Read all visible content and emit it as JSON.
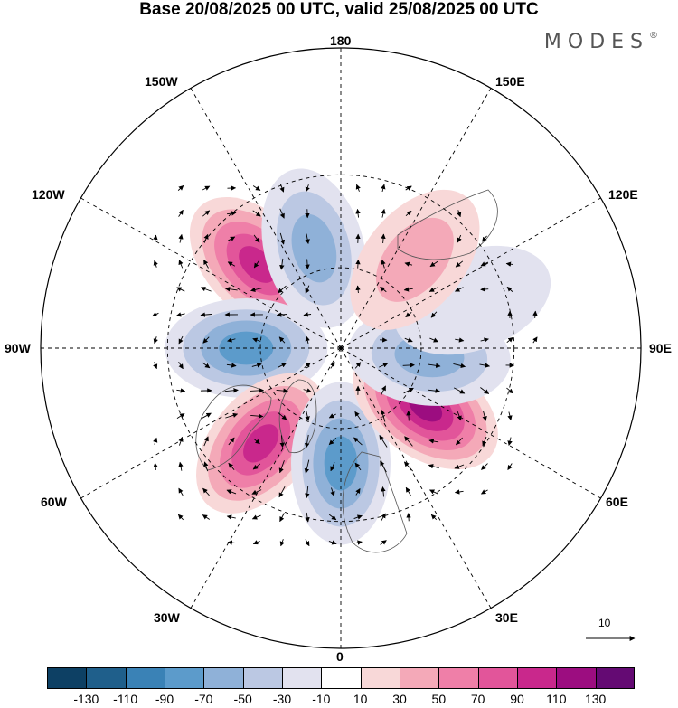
{
  "title": "Base 20/08/2025 00 UTC, valid 25/08/2025 00 UTC",
  "brand": "MODES",
  "brand_mark": "®",
  "map": {
    "projection": "north polar stereographic",
    "longitude_labels": {
      "top": "180",
      "bottom": "0",
      "left": "90W",
      "right": "90E",
      "upper_left_1": "150W",
      "upper_left_2": "120W",
      "upper_right_1": "150E",
      "upper_right_2": "120E",
      "lower_left_1": "60W",
      "lower_left_2": "30W",
      "lower_right_1": "60E",
      "lower_right_2": "30E"
    },
    "anomaly_centers": [
      {
        "name": "positive-anomaly-north-pacific",
        "lon": -135,
        "lat": 47,
        "value": 110
      },
      {
        "name": "negative-anomaly-bering-sea",
        "lon": -165,
        "lat": 52,
        "value": -70
      },
      {
        "name": "negative-anomaly-hudson-bay",
        "lon": -90,
        "lat": 55,
        "value": -90
      },
      {
        "name": "positive-anomaly-north-atlantic",
        "lon": -40,
        "lat": 45,
        "value": 110
      },
      {
        "name": "negative-anomaly-scandinavia-uk",
        "lon": 0,
        "lat": 48,
        "value": -90
      },
      {
        "name": "positive-anomaly-western-russia",
        "lon": 55,
        "lat": 52,
        "value": 130
      },
      {
        "name": "negative-anomaly-western-siberia",
        "lon": 85,
        "lat": 57,
        "value": -70
      },
      {
        "name": "negative-anomaly-central-siberia",
        "lon": 110,
        "lat": 40,
        "value": -30
      },
      {
        "name": "positive-anomaly-east-siberia",
        "lon": 140,
        "lat": 48,
        "value": 50
      }
    ]
  },
  "vector_reference": {
    "label": "10"
  },
  "colorbar": {
    "colors": [
      "#0d4064",
      "#1f5f8b",
      "#3a82b6",
      "#5c9bcb",
      "#8fb1d8",
      "#bbc8e3",
      "#e2e2ef",
      "#ffffff",
      "#f8d8d8",
      "#f4a9b8",
      "#ef7fa8",
      "#e2559a",
      "#c9288c",
      "#9c0d80",
      "#640a73"
    ],
    "ticks": [
      "-130",
      "-110",
      "-90",
      "-70",
      "-50",
      "-30",
      "-10",
      "10",
      "30",
      "50",
      "70",
      "90",
      "110",
      "130"
    ]
  }
}
